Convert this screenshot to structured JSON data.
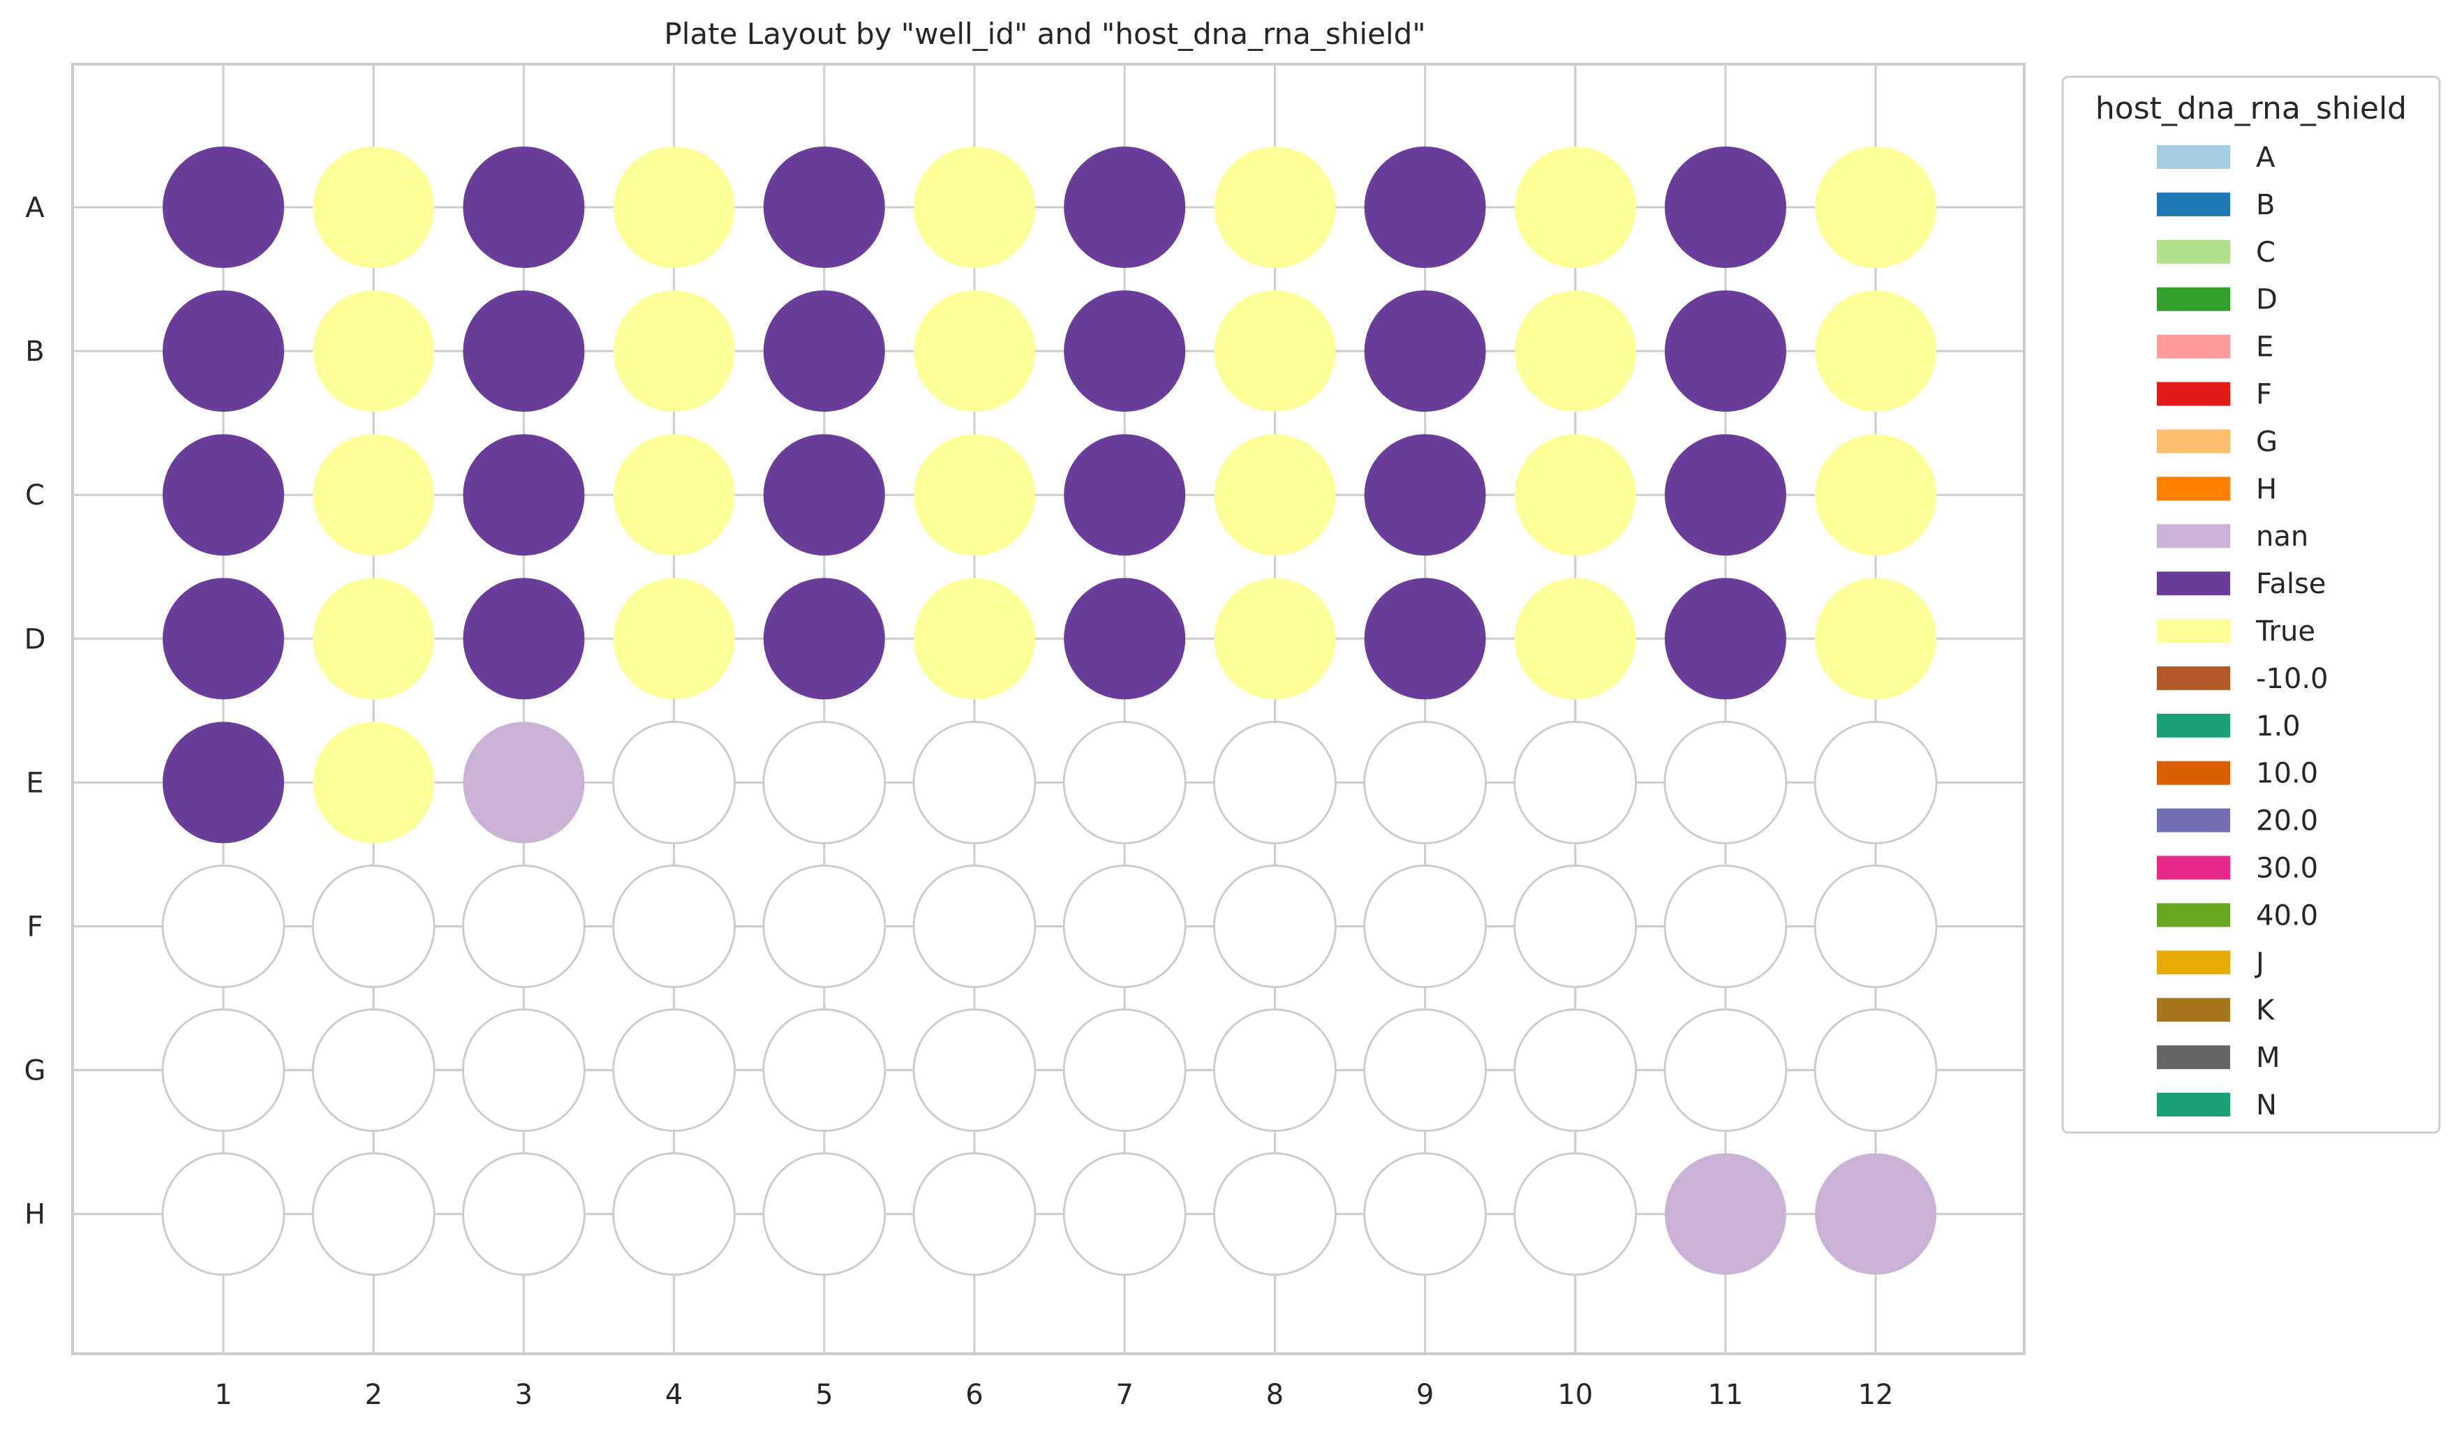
{
  "chart_data": {
    "type": "scatter",
    "title": "Plate Layout by \"well_id\" and \"host_dna_rna_shield\"",
    "xlabel": "",
    "ylabel": "",
    "rows": [
      "A",
      "B",
      "C",
      "D",
      "E",
      "F",
      "G",
      "H"
    ],
    "columns": [
      1,
      2,
      3,
      4,
      5,
      6,
      7,
      8,
      9,
      10,
      11,
      12
    ],
    "grid": true,
    "legend": {
      "title": "host_dna_rna_shield",
      "placement": "outside-right",
      "entries": [
        {
          "label": "A",
          "color": "#a6cee3"
        },
        {
          "label": "B",
          "color": "#1f78b4"
        },
        {
          "label": "C",
          "color": "#b2df8a"
        },
        {
          "label": "D",
          "color": "#33a02c"
        },
        {
          "label": "E",
          "color": "#fb9a99"
        },
        {
          "label": "F",
          "color": "#e31a1c"
        },
        {
          "label": "G",
          "color": "#fdbf6f"
        },
        {
          "label": "H",
          "color": "#ff7f00"
        },
        {
          "label": "nan",
          "color": "#cab2d6"
        },
        {
          "label": "False",
          "color": "#6a3d9a"
        },
        {
          "label": "True",
          "color": "#ffff99"
        },
        {
          "label": "-10.0",
          "color": "#b15928"
        },
        {
          "label": "1.0",
          "color": "#1b9e77"
        },
        {
          "label": "10.0",
          "color": "#d95f02"
        },
        {
          "label": "20.0",
          "color": "#7570b3"
        },
        {
          "label": "30.0",
          "color": "#e7298a"
        },
        {
          "label": "40.0",
          "color": "#66a61e"
        },
        {
          "label": "J",
          "color": "#e6ab02"
        },
        {
          "label": "K",
          "color": "#a6761d"
        },
        {
          "label": "M",
          "color": "#666666"
        },
        {
          "label": "N",
          "color": "#1b9e77"
        }
      ]
    },
    "wells": [
      {
        "row": "A",
        "col": 1,
        "value": "False"
      },
      {
        "row": "A",
        "col": 2,
        "value": "True"
      },
      {
        "row": "A",
        "col": 3,
        "value": "False"
      },
      {
        "row": "A",
        "col": 4,
        "value": "True"
      },
      {
        "row": "A",
        "col": 5,
        "value": "False"
      },
      {
        "row": "A",
        "col": 6,
        "value": "True"
      },
      {
        "row": "A",
        "col": 7,
        "value": "False"
      },
      {
        "row": "A",
        "col": 8,
        "value": "True"
      },
      {
        "row": "A",
        "col": 9,
        "value": "False"
      },
      {
        "row": "A",
        "col": 10,
        "value": "True"
      },
      {
        "row": "A",
        "col": 11,
        "value": "False"
      },
      {
        "row": "A",
        "col": 12,
        "value": "True"
      },
      {
        "row": "B",
        "col": 1,
        "value": "False"
      },
      {
        "row": "B",
        "col": 2,
        "value": "True"
      },
      {
        "row": "B",
        "col": 3,
        "value": "False"
      },
      {
        "row": "B",
        "col": 4,
        "value": "True"
      },
      {
        "row": "B",
        "col": 5,
        "value": "False"
      },
      {
        "row": "B",
        "col": 6,
        "value": "True"
      },
      {
        "row": "B",
        "col": 7,
        "value": "False"
      },
      {
        "row": "B",
        "col": 8,
        "value": "True"
      },
      {
        "row": "B",
        "col": 9,
        "value": "False"
      },
      {
        "row": "B",
        "col": 10,
        "value": "True"
      },
      {
        "row": "B",
        "col": 11,
        "value": "False"
      },
      {
        "row": "B",
        "col": 12,
        "value": "True"
      },
      {
        "row": "C",
        "col": 1,
        "value": "False"
      },
      {
        "row": "C",
        "col": 2,
        "value": "True"
      },
      {
        "row": "C",
        "col": 3,
        "value": "False"
      },
      {
        "row": "C",
        "col": 4,
        "value": "True"
      },
      {
        "row": "C",
        "col": 5,
        "value": "False"
      },
      {
        "row": "C",
        "col": 6,
        "value": "True"
      },
      {
        "row": "C",
        "col": 7,
        "value": "False"
      },
      {
        "row": "C",
        "col": 8,
        "value": "True"
      },
      {
        "row": "C",
        "col": 9,
        "value": "False"
      },
      {
        "row": "C",
        "col": 10,
        "value": "True"
      },
      {
        "row": "C",
        "col": 11,
        "value": "False"
      },
      {
        "row": "C",
        "col": 12,
        "value": "True"
      },
      {
        "row": "D",
        "col": 1,
        "value": "False"
      },
      {
        "row": "D",
        "col": 2,
        "value": "True"
      },
      {
        "row": "D",
        "col": 3,
        "value": "False"
      },
      {
        "row": "D",
        "col": 4,
        "value": "True"
      },
      {
        "row": "D",
        "col": 5,
        "value": "False"
      },
      {
        "row": "D",
        "col": 6,
        "value": "True"
      },
      {
        "row": "D",
        "col": 7,
        "value": "False"
      },
      {
        "row": "D",
        "col": 8,
        "value": "True"
      },
      {
        "row": "D",
        "col": 9,
        "value": "False"
      },
      {
        "row": "D",
        "col": 10,
        "value": "True"
      },
      {
        "row": "D",
        "col": 11,
        "value": "False"
      },
      {
        "row": "D",
        "col": 12,
        "value": "True"
      },
      {
        "row": "E",
        "col": 1,
        "value": "False"
      },
      {
        "row": "E",
        "col": 2,
        "value": "True"
      },
      {
        "row": "E",
        "col": 3,
        "value": "nan"
      },
      {
        "row": "H",
        "col": 11,
        "value": "nan"
      },
      {
        "row": "H",
        "col": 12,
        "value": "nan"
      }
    ]
  }
}
